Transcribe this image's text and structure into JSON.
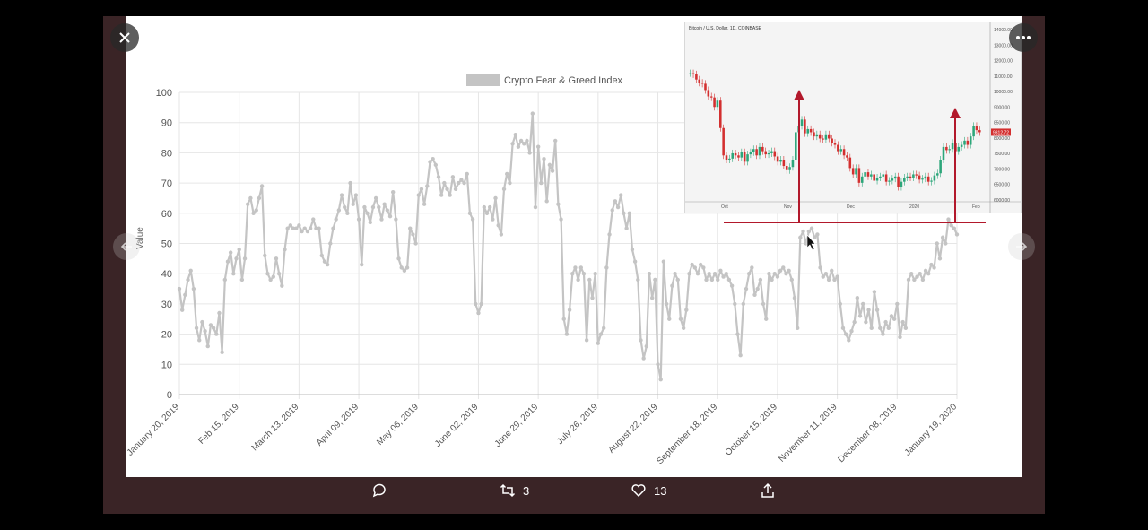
{
  "viewer": {
    "close_icon": "close-icon",
    "more_icon": "more-horizontal-icon",
    "prev_icon": "arrow-left-icon",
    "next_icon": "arrow-right-icon",
    "actions": {
      "reply_count": "",
      "retweet_count": "3",
      "like_count": "13"
    }
  },
  "colors": {
    "series": "#c4c4c4",
    "grid": "#e6e6e6",
    "annotation": "#b2182b",
    "inset_up": "#2ca67a",
    "inset_down": "#d32f2f"
  },
  "chart_data": [
    {
      "type": "line",
      "ylabel": "Value",
      "ylim": [
        0,
        100
      ],
      "yticks": [
        0,
        10,
        20,
        30,
        40,
        50,
        60,
        70,
        80,
        90,
        100
      ],
      "grid": true,
      "legend": {
        "position": "top-center",
        "entries": [
          "Crypto Fear & Greed Index"
        ]
      },
      "x_tick_labels": [
        "January 20, 2019",
        "Feb 15, 2019",
        "March 13, 2019",
        "April 09, 2019",
        "May 06, 2019",
        "June 02, 2019",
        "June 29, 2019",
        "July 26, 2019",
        "August 22, 2019",
        "September 18, 2019",
        "October 15, 2019",
        "November 11, 2019",
        "December 08, 2019",
        "January 19, 2020"
      ],
      "series": [
        {
          "name": "Crypto Fear & Greed Index",
          "values": [
            35,
            28,
            33,
            38,
            41,
            35,
            22,
            18,
            24,
            21,
            16,
            23,
            22,
            20,
            27,
            14,
            38,
            44,
            47,
            40,
            45,
            48,
            38,
            45,
            63,
            65,
            60,
            61,
            65,
            69,
            46,
            40,
            38,
            39,
            45,
            40,
            36,
            48,
            55,
            56,
            55,
            55,
            56,
            54,
            55,
            54,
            55,
            58,
            55,
            55,
            46,
            44,
            43,
            50,
            55,
            58,
            61,
            66,
            62,
            60,
            70,
            63,
            66,
            58,
            43,
            62,
            60,
            57,
            62,
            65,
            62,
            58,
            63,
            61,
            59,
            67,
            58,
            45,
            42,
            41,
            42,
            55,
            53,
            50,
            66,
            68,
            63,
            69,
            77,
            78,
            76,
            72,
            66,
            70,
            68,
            66,
            72,
            68,
            70,
            71,
            70,
            73,
            60,
            58,
            30,
            27,
            30,
            62,
            60,
            62,
            58,
            65,
            56,
            53,
            68,
            73,
            70,
            83,
            86,
            82,
            84,
            83,
            84,
            80,
            93,
            62,
            82,
            70,
            78,
            64,
            76,
            74,
            84,
            63,
            58,
            25,
            20,
            28,
            40,
            42,
            38,
            42,
            40,
            18,
            38,
            32,
            40,
            17,
            20,
            22,
            42,
            53,
            61,
            64,
            62,
            66,
            60,
            55,
            60,
            48,
            44,
            38,
            18,
            12,
            16,
            40,
            32,
            38,
            10,
            5,
            44,
            30,
            25,
            36,
            40,
            38,
            25,
            22,
            28,
            40,
            43,
            42,
            40,
            43,
            42,
            38,
            40,
            38,
            40,
            38,
            41,
            39,
            40,
            38,
            36,
            30,
            20,
            13,
            30,
            35,
            40,
            42,
            33,
            35,
            38,
            30,
            25,
            40,
            38,
            40,
            39,
            41,
            42,
            40,
            41,
            38,
            32,
            22,
            52,
            54,
            50,
            54,
            55,
            52,
            53,
            42,
            39,
            40,
            38,
            41,
            38,
            39,
            30,
            22,
            20,
            18,
            21,
            24,
            32,
            26,
            30,
            24,
            28,
            22,
            34,
            28,
            22,
            20,
            24,
            22,
            26,
            25,
            30,
            19,
            24,
            22,
            38,
            40,
            38,
            39,
            40,
            38,
            41,
            40,
            43,
            42,
            50,
            45,
            52,
            50,
            58,
            56,
            55,
            53
          ]
        }
      ]
    },
    {
      "type": "line",
      "title": "Bitcoin / U.S. Dollar, 1D, COINBASE",
      "ylim": [
        6000,
        14000
      ],
      "yticks": [
        "14000.00",
        "13000.00",
        "12000.00",
        "11000.00",
        "10000.00",
        "9000.00",
        "8500.00",
        "8000.00",
        "7500.00",
        "7000.00",
        "6500.00",
        "6000.00"
      ],
      "current_price_label": "9312.72",
      "x_tick_labels": [
        "Oct",
        "Nov",
        "Dec",
        "2020",
        "Feb"
      ],
      "series": [
        {
          "name": "",
          "values": [
            12100,
            12050,
            11800,
            11650,
            11600,
            11300,
            11000,
            10950,
            10500,
            10800,
            9500,
            8200,
            8000,
            8050,
            8300,
            8200,
            8100,
            8350,
            7900,
            8250,
            8350,
            8500,
            8200,
            8600,
            8400,
            8250,
            8300,
            8400,
            8150,
            7900,
            8000,
            7700,
            7500,
            7650,
            8000,
            9300,
            9600,
            9900,
            9250,
            9450,
            9300,
            9100,
            9200,
            9000,
            8950,
            9200,
            9000,
            8800,
            8700,
            8400,
            8500,
            8200,
            8100,
            7600,
            7300,
            7600,
            6900,
            7200,
            7400,
            7200,
            7300,
            7000,
            7150,
            7200,
            7300,
            6950,
            7000,
            7100,
            7200,
            6700,
            6950,
            7150,
            7200,
            7150,
            7300,
            7250,
            7050,
            7100,
            7200,
            6950,
            7000,
            7250,
            7350,
            8000,
            8600,
            8450,
            8500,
            8800,
            8400,
            8600,
            8700,
            8900,
            8700,
            9100,
            9600,
            9400,
            9300
          ]
        }
      ]
    }
  ]
}
